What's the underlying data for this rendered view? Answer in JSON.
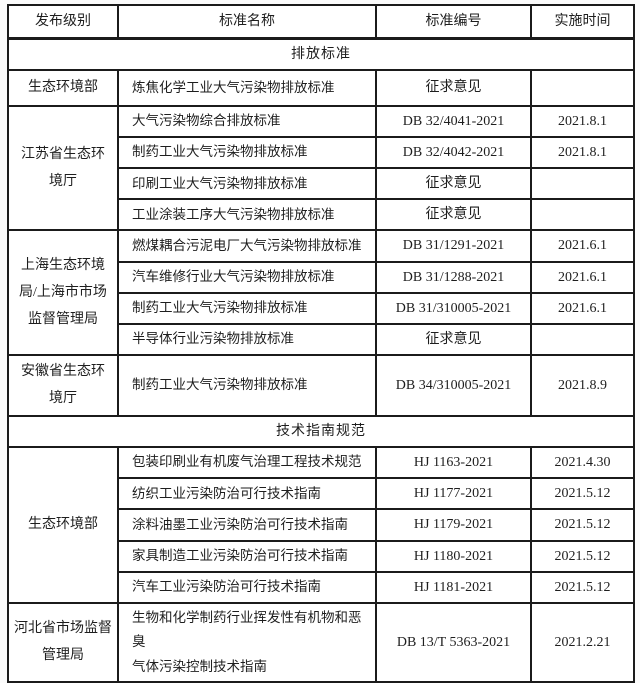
{
  "table": {
    "headers": [
      "发布级别",
      "标准名称",
      "标准编号",
      "实施时间"
    ],
    "colors": {
      "border": "#1b1b1b",
      "text": "#1e1e1e",
      "background": "#ffffff"
    },
    "sections": [
      {
        "title": "排放标准",
        "groups": [
          {
            "org": "生态环境部",
            "rows": [
              {
                "name": "炼焦化学工业大气污染物排放标准",
                "code": "征求意见",
                "date": ""
              }
            ]
          },
          {
            "org": "江苏省生态环\n境厅",
            "rows": [
              {
                "name": "大气污染物综合排放标准",
                "code": "DB 32/4041-2021",
                "date": "2021.8.1"
              },
              {
                "name": "制药工业大气污染物排放标准",
                "code": "DB 32/4042-2021",
                "date": "2021.8.1"
              },
              {
                "name": "印刷工业大气污染物排放标准",
                "code": "征求意见",
                "date": ""
              },
              {
                "name": "工业涂装工序大气污染物排放标准",
                "code": "征求意见",
                "date": ""
              }
            ]
          },
          {
            "org": "上海生态环境\n局/上海市市场\n监督管理局",
            "rows": [
              {
                "name": "燃煤耦合污泥电厂大气污染物排放标准",
                "code": "DB 31/1291-2021",
                "date": "2021.6.1"
              },
              {
                "name": "汽车维修行业大气污染物排放标准",
                "code": "DB 31/1288-2021",
                "date": "2021.6.1"
              },
              {
                "name": "制药工业大气污染物排放标准",
                "code": "DB 31/310005-2021",
                "date": "2021.6.1"
              },
              {
                "name": "半导体行业污染物排放标准",
                "code": "征求意见",
                "date": ""
              }
            ]
          },
          {
            "org": "安徽省生态环\n境厅",
            "rows": [
              {
                "name": "制药工业大气污染物排放标准",
                "code": "DB 34/310005-2021",
                "date": "2021.8.9"
              }
            ]
          }
        ]
      },
      {
        "title": "技术指南规范",
        "groups": [
          {
            "org": "生态环境部",
            "rows": [
              {
                "name": "包装印刷业有机废气治理工程技术规范",
                "code": "HJ 1163-2021",
                "date": "2021.4.30"
              },
              {
                "name": "纺织工业污染防治可行技术指南",
                "code": "HJ 1177-2021",
                "date": "2021.5.12"
              },
              {
                "name": "涂料油墨工业污染防治可行技术指南",
                "code": "HJ 1179-2021",
                "date": "2021.5.12"
              },
              {
                "name": "家具制造工业污染防治可行技术指南",
                "code": "HJ 1180-2021",
                "date": "2021.5.12"
              },
              {
                "name": "汽车工业污染防治可行技术指南",
                "code": "HJ 1181-2021",
                "date": "2021.5.12"
              }
            ]
          },
          {
            "org": "河北省市场监督\n管理局",
            "rows": [
              {
                "name": "生物和化学制药行业挥发性有机物和恶臭\n气体污染控制技术指南",
                "code": "DB 13/T 5363-2021",
                "date": "2021.2.21"
              }
            ]
          }
        ]
      }
    ]
  }
}
